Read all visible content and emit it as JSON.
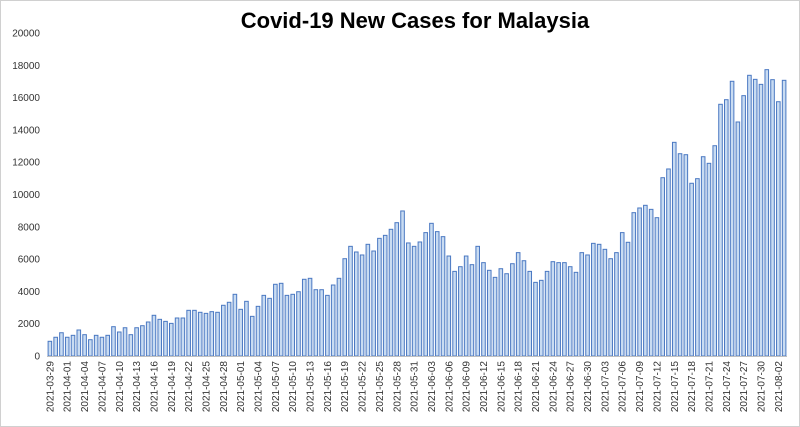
{
  "chart_data": {
    "type": "bar",
    "title": "Covid-19 New Cases for Malaysia",
    "xlabel": "",
    "ylabel": "",
    "ylim": [
      0,
      20000
    ],
    "yticks": [
      0,
      2000,
      4000,
      6000,
      8000,
      10000,
      12000,
      14000,
      16000,
      18000,
      20000
    ],
    "xtick_every": 3,
    "grid": false,
    "legend": "none",
    "colors": {
      "bar_fill": "#c9dcf2",
      "bar_edge": "#4a78c2"
    },
    "categories": [
      "2021-03-29",
      "2021-03-30",
      "2021-03-31",
      "2021-04-01",
      "2021-04-02",
      "2021-04-03",
      "2021-04-04",
      "2021-04-05",
      "2021-04-06",
      "2021-04-07",
      "2021-04-08",
      "2021-04-09",
      "2021-04-10",
      "2021-04-11",
      "2021-04-12",
      "2021-04-13",
      "2021-04-14",
      "2021-04-15",
      "2021-04-16",
      "2021-04-17",
      "2021-04-18",
      "2021-04-19",
      "2021-04-20",
      "2021-04-21",
      "2021-04-22",
      "2021-04-23",
      "2021-04-24",
      "2021-04-25",
      "2021-04-26",
      "2021-04-27",
      "2021-04-28",
      "2021-04-29",
      "2021-04-30",
      "2021-05-01",
      "2021-05-02",
      "2021-05-03",
      "2021-05-04",
      "2021-05-05",
      "2021-05-06",
      "2021-05-07",
      "2021-05-08",
      "2021-05-09",
      "2021-05-10",
      "2021-05-11",
      "2021-05-12",
      "2021-05-13",
      "2021-05-14",
      "2021-05-15",
      "2021-05-16",
      "2021-05-17",
      "2021-05-18",
      "2021-05-19",
      "2021-05-20",
      "2021-05-21",
      "2021-05-22",
      "2021-05-23",
      "2021-05-24",
      "2021-05-25",
      "2021-05-26",
      "2021-05-27",
      "2021-05-28",
      "2021-05-29",
      "2021-05-30",
      "2021-05-31",
      "2021-06-01",
      "2021-06-02",
      "2021-06-03",
      "2021-06-04",
      "2021-06-05",
      "2021-06-06",
      "2021-06-07",
      "2021-06-08",
      "2021-06-09",
      "2021-06-10",
      "2021-06-11",
      "2021-06-12",
      "2021-06-13",
      "2021-06-14",
      "2021-06-15",
      "2021-06-16",
      "2021-06-17",
      "2021-06-18",
      "2021-06-19",
      "2021-06-20",
      "2021-06-21",
      "2021-06-22",
      "2021-06-23",
      "2021-06-24",
      "2021-06-25",
      "2021-06-26",
      "2021-06-27",
      "2021-06-28",
      "2021-06-29",
      "2021-06-30",
      "2021-07-01",
      "2021-07-02",
      "2021-07-03",
      "2021-07-04",
      "2021-07-05",
      "2021-07-06",
      "2021-07-07",
      "2021-07-08",
      "2021-07-09",
      "2021-07-10",
      "2021-07-11",
      "2021-07-12",
      "2021-07-13",
      "2021-07-14",
      "2021-07-15",
      "2021-07-16",
      "2021-07-17",
      "2021-07-18",
      "2021-07-19",
      "2021-07-20",
      "2021-07-21",
      "2021-07-22",
      "2021-07-23",
      "2021-07-24",
      "2021-07-25",
      "2021-07-26",
      "2021-07-27",
      "2021-07-28",
      "2021-07-29",
      "2021-07-30",
      "2021-07-31",
      "2021-08-01",
      "2021-08-02",
      "2021-08-03"
    ],
    "values": [
      910,
      1160,
      1440,
      1160,
      1280,
      1610,
      1320,
      1010,
      1280,
      1160,
      1280,
      1815,
      1486,
      1750,
      1320,
      1750,
      1876,
      2105,
      2520,
      2270,
      2145,
      2020,
      2353,
      2353,
      2828,
      2828,
      2705,
      2640,
      2745,
      2705,
      3140,
      3325,
      3820,
      2890,
      3385,
      2455,
      3075,
      3755,
      3570,
      4440,
      4500,
      3755,
      3820,
      3980,
      4750,
      4810,
      4105,
      4105,
      3755,
      4395,
      4810,
      6025,
      6790,
      6440,
      6255,
      6915,
      6500,
      7285,
      7470,
      7845,
      8255,
      8980,
      7000,
      6790,
      7060,
      7640,
      8215,
      7700,
      7390,
      6190,
      5240,
      5530,
      6190,
      5655,
      6790,
      5780,
      5305,
      4870,
      5405,
      5095,
      5715,
      6400,
      5900,
      5240,
      4560,
      4685,
      5240,
      5840,
      5780,
      5780,
      5530,
      5180,
      6400,
      6255,
      6975,
      6915,
      6605,
      6025,
      6400,
      7640,
      7040,
      8875,
      9165,
      9330,
      9080,
      8565,
      11040,
      11580,
      13230,
      12525,
      12465,
      10695,
      10980,
      12340,
      11930,
      13020,
      15585,
      15870,
      17010,
      14490,
      16120,
      17380,
      17130,
      16820,
      17730,
      17110,
      15745,
      17070
    ]
  }
}
